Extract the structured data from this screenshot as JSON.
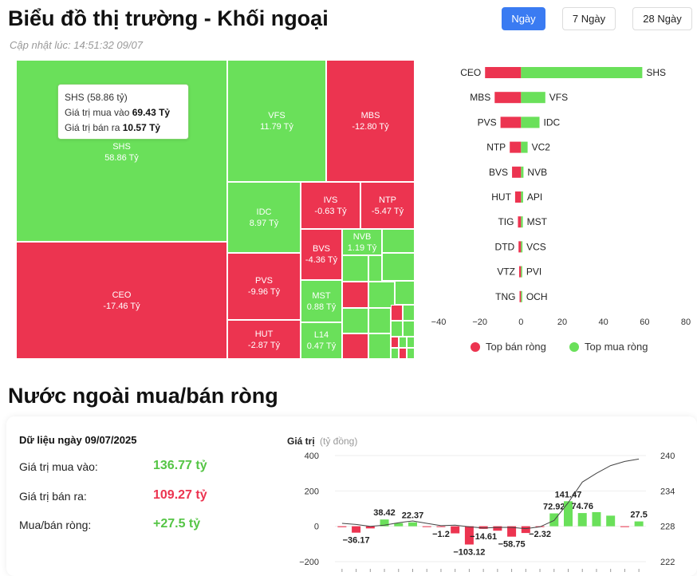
{
  "header": {
    "title": "Biểu đồ thị trường - Khối ngoại",
    "updated": "Cập nhật lúc: 14:51:32 09/07",
    "ranges": [
      "Ngày",
      "7 Ngày",
      "28 Ngày"
    ],
    "active_range": "Ngày"
  },
  "colors": {
    "buy": "#6ae05a",
    "sell": "#ec3450",
    "accent": "#3a7bf2"
  },
  "treemap": {
    "tiles": [
      {
        "ticker": "SHS",
        "value": "58.86 Tỷ",
        "color": "g"
      },
      {
        "ticker": "CEO",
        "value": "-17.46 Tỷ",
        "color": "r"
      },
      {
        "ticker": "VFS",
        "value": "11.79 Tỷ",
        "color": "g"
      },
      {
        "ticker": "MBS",
        "value": "-12.80 Tỷ",
        "color": "r"
      },
      {
        "ticker": "IDC",
        "value": "8.97 Tỷ",
        "color": "g"
      },
      {
        "ticker": "IVS",
        "value": "-0.63 Tỷ",
        "color": "r"
      },
      {
        "ticker": "NTP",
        "value": "-5.47 Tỷ",
        "color": "r"
      },
      {
        "ticker": "BVS",
        "value": "-4.36 Tỷ",
        "color": "r"
      },
      {
        "ticker": "NVB",
        "value": "1.19 Tỷ",
        "color": "g"
      },
      {
        "ticker": "PVS",
        "value": "-9.96 Tỷ",
        "color": "r"
      },
      {
        "ticker": "MST",
        "value": "0.88 Tỷ",
        "color": "g"
      },
      {
        "ticker": "HUT",
        "value": "-2.87 Tỷ",
        "color": "r"
      },
      {
        "ticker": "L14",
        "value": "0.47 Tỷ",
        "color": "g"
      }
    ],
    "tooltip": {
      "title": "SHS (58.86 tỷ)",
      "buy_label": "Giá trị mua vào",
      "buy_value": "69.43 Tỷ",
      "sell_label": "Giá trị bán ra",
      "sell_value": "10.57 Tỷ"
    }
  },
  "bar_chart": {
    "chart_data": {
      "type": "bar",
      "orientation": "horizontal",
      "xlim": [
        -40,
        80
      ],
      "xticks": [
        "−40",
        "−20",
        "0",
        "20",
        "40",
        "60",
        "80"
      ],
      "sell_labels": [
        "CEO",
        "MBS",
        "PVS",
        "NTP",
        "BVS",
        "HUT",
        "TIG",
        "DTD",
        "VTZ",
        "TNG"
      ],
      "sell_values": [
        -17.46,
        -12.8,
        -9.96,
        -5.47,
        -4.36,
        -2.87,
        -1.5,
        -1.2,
        -0.9,
        -0.7
      ],
      "buy_labels": [
        "SHS",
        "VFS",
        "IDC",
        "VC2",
        "NVB",
        "API",
        "MST",
        "VCS",
        "PVI",
        "OCH"
      ],
      "buy_values": [
        58.86,
        11.79,
        8.97,
        3.2,
        1.19,
        1.0,
        0.88,
        0.7,
        0.5,
        0.4
      ]
    },
    "legend": {
      "sell": "Top bán ròng",
      "buy": "Top mua ròng"
    }
  },
  "section2": {
    "title": "Nước ngoài mua/bán ròng",
    "data_date": "Dữ liệu ngày 09/07/2025",
    "rows": [
      {
        "label": "Giá trị mua vào:",
        "value": "136.77 tỷ",
        "cls": "green"
      },
      {
        "label": "Giá trị bán ra:",
        "value": "109.27 tỷ",
        "cls": "red"
      },
      {
        "label": "Mua/bán ròng:",
        "value": "+27.5 tỷ",
        "cls": "green"
      }
    ]
  },
  "net_chart": {
    "chart_data": {
      "type": "bar",
      "ylabel": "Giá trị",
      "yunit": "(tỷ đồng)",
      "ylim": [
        -200,
        400
      ],
      "yticks": [
        "400",
        "200",
        "0",
        "−200"
      ],
      "y2ticks": [
        "240",
        "234",
        "228",
        "222"
      ],
      "y2lim": [
        222,
        240
      ],
      "values": [
        -5,
        -36.17,
        -12,
        38.42,
        18,
        22.37,
        -2,
        -1.2,
        -40,
        -103.12,
        -14.61,
        -25,
        -58.75,
        -38,
        -2.32,
        72.92,
        141.47,
        74.76,
        80,
        60,
        -3,
        27.5
      ],
      "labels": [
        "",
        "−36.17",
        "",
        "38.42",
        "",
        "22.37",
        "",
        "−1.2",
        "",
        "−103.12",
        "−14.61",
        "",
        "−58.75",
        "",
        "−2.32",
        "72.92",
        "141.47",
        "74.76",
        "",
        "",
        "",
        "27.5"
      ],
      "index_line": [
        228.5,
        228.3,
        228.0,
        228.2,
        228.6,
        228.9,
        228.5,
        228.1,
        228.2,
        227.9,
        227.7,
        227.8,
        227.8,
        227.6,
        227.9,
        229.0,
        232.0,
        235.5,
        237.0,
        238.3,
        239.0,
        239.4
      ]
    }
  }
}
